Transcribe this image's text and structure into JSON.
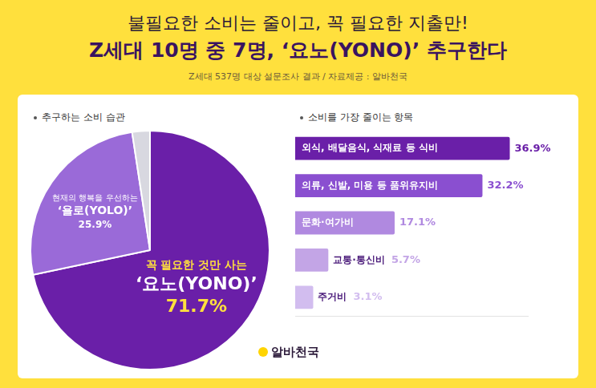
{
  "title": "불필요한 소비는 줄이고, 꼭 필요한 지출만!",
  "subtitle": "Z세대 10명 중 7명, ‘요노(YONO)’ 추구한다",
  "source": "Z세대 537명 대상 설문조사 결과 / 자료제공 : 알바천국",
  "brand": "알바천국",
  "chart_data": [
    {
      "type": "pie",
      "title": "추구하는 소비 습관",
      "categories": [
        "꼭 필요한 것만 사는 ‘요노(YONO)’",
        "현재의 행복을 우선하는 ‘욜로(YOLO)’",
        null
      ],
      "values": [
        71.7,
        25.9,
        2.4
      ],
      "value_labels": [
        "71.7%",
        "25.9%",
        null
      ],
      "colors": [
        "#6a1fa8",
        "#9a6ad8",
        "#d8d8e0"
      ],
      "data_labels": true
    },
    {
      "type": "bar",
      "title": "소비를 가장 줄이는 항목",
      "orientation": "horizontal",
      "categories": [
        "외식, 배달음식, 식재료 등 식비",
        "의류, 신발, 미용 등 품위유지비",
        "문화·여가비",
        "교통·통신비",
        "주거비"
      ],
      "values": [
        36.9,
        32.2,
        17.1,
        5.7,
        3.1
      ],
      "value_labels": [
        "36.9%",
        "32.2%",
        "17.1%",
        "5.7%",
        "3.1%"
      ],
      "colors": [
        "#6a1fa8",
        "#8a4fd0",
        "#b089e0",
        "#c3a5e6",
        "#d2bdef"
      ],
      "xlim": [
        0,
        40
      ],
      "grid": false,
      "tick_labels": false,
      "data_labels": true
    }
  ]
}
